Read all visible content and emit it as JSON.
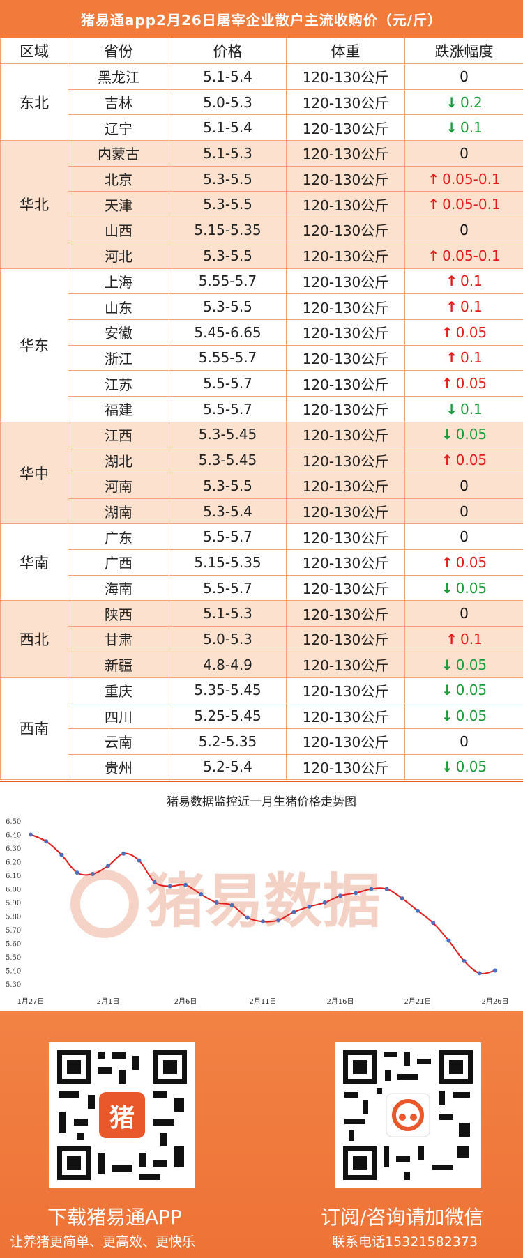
{
  "title": "猪易通app2月26日屠宰企业散户主流收购价（元/斤）",
  "table": {
    "headers": [
      "区域",
      "省份",
      "价格",
      "体重",
      "跌涨幅度"
    ],
    "regions": [
      {
        "name": "东北",
        "alt": false,
        "rows": [
          {
            "province": "黑龙江",
            "price": "5.1-5.4",
            "weight": "120-130公斤",
            "dir": "zero",
            "change": "0"
          },
          {
            "province": "吉林",
            "price": "5.0-5.3",
            "weight": "120-130公斤",
            "dir": "down",
            "change": "0.2"
          },
          {
            "province": "辽宁",
            "price": "5.1-5.4",
            "weight": "120-130公斤",
            "dir": "down",
            "change": "0.1"
          }
        ]
      },
      {
        "name": "华北",
        "alt": true,
        "rows": [
          {
            "province": "内蒙古",
            "price": "5.1-5.3",
            "weight": "120-130公斤",
            "dir": "zero",
            "change": "0"
          },
          {
            "province": "北京",
            "price": "5.3-5.5",
            "weight": "120-130公斤",
            "dir": "up",
            "change": "0.05-0.1"
          },
          {
            "province": "天津",
            "price": "5.3-5.5",
            "weight": "120-130公斤",
            "dir": "up",
            "change": "0.05-0.1"
          },
          {
            "province": "山西",
            "price": "5.15-5.35",
            "weight": "120-130公斤",
            "dir": "zero",
            "change": "0"
          },
          {
            "province": "河北",
            "price": "5.3-5.5",
            "weight": "120-130公斤",
            "dir": "up",
            "change": "0.05-0.1"
          }
        ]
      },
      {
        "name": "华东",
        "alt": false,
        "rows": [
          {
            "province": "上海",
            "price": "5.55-5.7",
            "weight": "120-130公斤",
            "dir": "up",
            "change": "0.1"
          },
          {
            "province": "山东",
            "price": "5.3-5.5",
            "weight": "120-130公斤",
            "dir": "up",
            "change": "0.1"
          },
          {
            "province": "安徽",
            "price": "5.45-6.65",
            "weight": "120-130公斤",
            "dir": "up",
            "change": "0.05"
          },
          {
            "province": "浙江",
            "price": "5.55-5.7",
            "weight": "120-130公斤",
            "dir": "up",
            "change": "0.1"
          },
          {
            "province": "江苏",
            "price": "5.5-5.7",
            "weight": "120-130公斤",
            "dir": "up",
            "change": "0.05"
          },
          {
            "province": "福建",
            "price": "5.5-5.7",
            "weight": "120-130公斤",
            "dir": "down",
            "change": "0.1"
          }
        ]
      },
      {
        "name": "华中",
        "alt": true,
        "rows": [
          {
            "province": "江西",
            "price": "5.3-5.45",
            "weight": "120-130公斤",
            "dir": "down",
            "change": "0.05"
          },
          {
            "province": "湖北",
            "price": "5.3-5.45",
            "weight": "120-130公斤",
            "dir": "up",
            "change": "0.05"
          },
          {
            "province": "河南",
            "price": "5.3-5.5",
            "weight": "120-130公斤",
            "dir": "zero",
            "change": "0"
          },
          {
            "province": "湖南",
            "price": "5.3-5.4",
            "weight": "120-130公斤",
            "dir": "zero",
            "change": "0"
          }
        ]
      },
      {
        "name": "华南",
        "alt": false,
        "rows": [
          {
            "province": "广东",
            "price": "5.5-5.7",
            "weight": "120-130公斤",
            "dir": "zero",
            "change": "0"
          },
          {
            "province": "广西",
            "price": "5.15-5.35",
            "weight": "120-130公斤",
            "dir": "up",
            "change": "0.05"
          },
          {
            "province": "海南",
            "price": "5.5-5.7",
            "weight": "120-130公斤",
            "dir": "down",
            "change": "0.05"
          }
        ]
      },
      {
        "name": "西北",
        "alt": true,
        "rows": [
          {
            "province": "陕西",
            "price": "5.1-5.3",
            "weight": "120-130公斤",
            "dir": "zero",
            "change": "0"
          },
          {
            "province": "甘肃",
            "price": "5.0-5.3",
            "weight": "120-130公斤",
            "dir": "up",
            "change": "0.1"
          },
          {
            "province": "新疆",
            "price": "4.8-4.9",
            "weight": "120-130公斤",
            "dir": "down",
            "change": "0.05"
          }
        ]
      },
      {
        "name": "西南",
        "alt": false,
        "rows": [
          {
            "province": "重庆",
            "price": "5.35-5.45",
            "weight": "120-130公斤",
            "dir": "down",
            "change": "0.05"
          },
          {
            "province": "四川",
            "price": "5.25-5.45",
            "weight": "120-130公斤",
            "dir": "down",
            "change": "0.05"
          },
          {
            "province": "云南",
            "price": "5.2-5.35",
            "weight": "120-130公斤",
            "dir": "zero",
            "change": "0"
          },
          {
            "province": "贵州",
            "price": "5.2-5.4",
            "weight": "120-130公斤",
            "dir": "down",
            "change": "0.05"
          }
        ]
      }
    ]
  },
  "chart_data": {
    "type": "line",
    "title": "猪易数据监控近一月生猪价格走势图",
    "x": [
      "1月27日",
      "1月28日",
      "1月29日",
      "1月30日",
      "1月31日",
      "2月1日",
      "2月2日",
      "2月3日",
      "2月4日",
      "2月5日",
      "2月6日",
      "2月7日",
      "2月8日",
      "2月9日",
      "2月10日",
      "2月11日",
      "2月12日",
      "2月13日",
      "2月14日",
      "2月15日",
      "2月16日",
      "2月17日",
      "2月18日",
      "2月19日",
      "2月20日",
      "2月21日",
      "2月22日",
      "2月23日",
      "2月24日",
      "2月25日",
      "2月26日"
    ],
    "values": [
      6.4,
      6.35,
      6.25,
      6.12,
      6.11,
      6.17,
      6.26,
      6.21,
      6.05,
      6.02,
      6.03,
      5.96,
      5.9,
      5.88,
      5.79,
      5.76,
      5.77,
      5.83,
      5.87,
      5.9,
      5.95,
      5.97,
      6.0,
      6.0,
      5.93,
      5.84,
      5.75,
      5.62,
      5.47,
      5.38,
      5.4
    ],
    "xticks": [
      "1月27日",
      "2月1日",
      "2月6日",
      "2月11日",
      "2月16日",
      "2月21日",
      "2月26日"
    ],
    "yticks": [
      "5.30",
      "5.40",
      "5.50",
      "5.60",
      "5.70",
      "5.80",
      "5.90",
      "6.00",
      "6.10",
      "6.20",
      "6.30",
      "6.40",
      "6.50"
    ],
    "ylim": [
      5.3,
      6.5
    ],
    "line_color": "#e31e1e",
    "point_color": "#4f6fbd",
    "grid": false
  },
  "watermark": "猪易数据",
  "bottom": {
    "left_title": "下载猪易通APP",
    "left_sub": "让养猪更简单、更高效、更快乐",
    "right_title": "订阅/咨询请加微信",
    "right_sub": "联系电话15321582373",
    "qr_left_badge": "猪"
  },
  "colors": {
    "accent": "#f27b3b",
    "up": "#e21b1b",
    "down": "#1a9b3a"
  }
}
